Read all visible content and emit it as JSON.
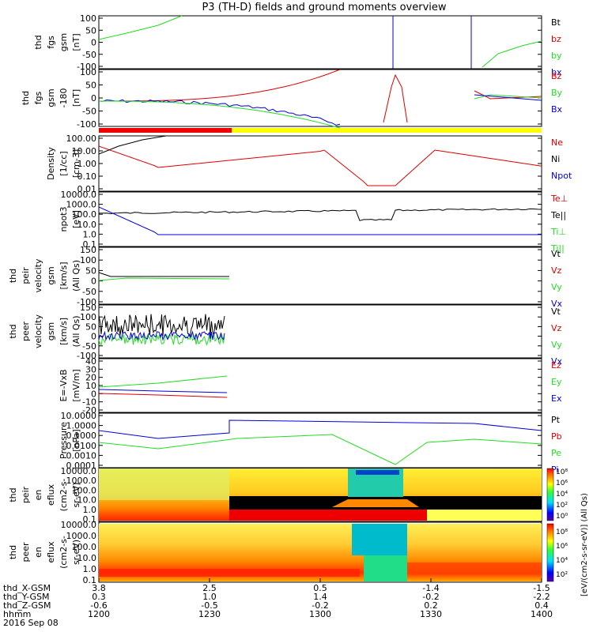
{
  "title": "P3 (TH-D) fields and ground moments overview",
  "colors": {
    "black": "#000000",
    "red": "#dd0000",
    "green": "#22dd22",
    "blue": "#0000dd",
    "bar_red": "#ee0000",
    "bar_yellow": "#ffff00"
  },
  "panels": [
    {
      "ylabel": [
        "thd",
        "fgs",
        "gsm",
        "[nT]"
      ],
      "ticks": [
        "100",
        "50",
        "0",
        "-50",
        "-100"
      ],
      "legend": [
        {
          "text": "Bt",
          "color": "black"
        },
        {
          "text": "bz",
          "color": "red"
        },
        {
          "text": "by",
          "color": "green"
        },
        {
          "text": "bx",
          "color": "blue"
        }
      ]
    },
    {
      "ylabel": [
        "thd",
        "fgs",
        "gsm",
        "-180",
        "[nT]"
      ],
      "ticks": [
        "100",
        "50",
        "0",
        "-50",
        "-100"
      ],
      "legend": [
        {
          "text": "Bz",
          "color": "red"
        },
        {
          "text": "By",
          "color": "green"
        },
        {
          "text": "Bx",
          "color": "blue"
        }
      ]
    },
    {
      "ylabel": [
        "Density",
        "[1/cc]",
        "[cm-3]"
      ],
      "ticks": [
        "100.00",
        "10.00",
        "1.00",
        "0.10",
        "0.01"
      ],
      "legend": [
        {
          "text": "Ne",
          "color": "red"
        },
        {
          "text": "Ni",
          "color": "black"
        },
        {
          "text": "Npot",
          "color": "blue"
        }
      ]
    },
    {
      "ylabel": [
        "npot3",
        "[eV]"
      ],
      "ticks": [
        "10000.0",
        "1000.0",
        "100.0",
        "10.0",
        "1.0",
        "0.1"
      ],
      "legend": [
        {
          "text": "Te⊥",
          "color": "red"
        },
        {
          "text": "Te||",
          "color": "black"
        },
        {
          "text": "Ti⊥",
          "color": "green"
        },
        {
          "text": "Ti||",
          "color": "green"
        }
      ]
    },
    {
      "ylabel": [
        "thd",
        "peir",
        "velocity",
        "gsm",
        "[km/s]",
        "(All Qs)"
      ],
      "ticks": [
        "150",
        "100",
        "50",
        "0",
        "-50",
        "-100"
      ],
      "legend": [
        {
          "text": "Vt",
          "color": "black"
        },
        {
          "text": "Vz",
          "color": "red"
        },
        {
          "text": "Vy",
          "color": "green"
        },
        {
          "text": "Vx",
          "color": "blue"
        }
      ]
    },
    {
      "ylabel": [
        "thd",
        "peer",
        "velocity",
        "gsm",
        "[km/s]",
        "(All Qs)"
      ],
      "ticks": [
        "150",
        "100",
        "50",
        "0",
        "-50",
        "-100"
      ],
      "legend": [
        {
          "text": "Vt",
          "color": "black"
        },
        {
          "text": "Vz",
          "color": "red"
        },
        {
          "text": "Vy",
          "color": "green"
        },
        {
          "text": "Vx",
          "color": "blue"
        }
      ]
    },
    {
      "ylabel": [
        "E=-VxB",
        "[mV/m]"
      ],
      "ticks": [
        "40",
        "30",
        "20",
        "10",
        "0",
        "-10",
        "-20"
      ],
      "legend": [
        {
          "text": "Ez",
          "color": "red"
        },
        {
          "text": "Ey",
          "color": "green"
        },
        {
          "text": "Ex",
          "color": "blue"
        }
      ]
    },
    {
      "ylabel": [
        "Pressure",
        "[nPa]"
      ],
      "ticks": [
        "10.0000",
        "1.0000",
        "0.1000",
        "0.0100",
        "0.0010",
        "0.0001"
      ],
      "legend": [
        {
          "text": "Pt",
          "color": "black"
        },
        {
          "text": "Pb",
          "color": "red"
        },
        {
          "text": "Pe",
          "color": "green"
        },
        {
          "text": "Pi",
          "color": "blue"
        }
      ]
    },
    {
      "ylabel": [
        "thd",
        "peir",
        "en",
        "eflux",
        "(cm2-s-",
        "sr-eV)"
      ],
      "ticks": [
        "10000.0",
        "1000.0",
        "100.0",
        "10.0",
        "1.0",
        "0.1"
      ],
      "legend": []
    },
    {
      "ylabel": [
        "thd",
        "peer",
        "en",
        "eflux",
        "(cm2-s-",
        "sr-eV)"
      ],
      "ticks": [
        "10000.0",
        "1000.0",
        "100.0",
        "10.0",
        "1.0",
        "0.1"
      ],
      "legend": []
    }
  ],
  "colorbar": {
    "label": "[eV/(cm2-s-sr-eV)] (All Qs)",
    "ticks_upper": [
      "10⁸",
      "10⁶",
      "10⁴",
      "10²",
      "10⁰"
    ],
    "ticks_lower": [
      "10⁸",
      "10⁶",
      "10⁴",
      "10²"
    ]
  },
  "xaxis": {
    "rows": [
      {
        "label": "thd_X-GSM",
        "values": [
          "3.8",
          "2.5",
          "0.5",
          "-1.4",
          "-1.5"
        ]
      },
      {
        "label": "thd_Y-GSM",
        "values": [
          "0.3",
          "1.0",
          "1.4",
          "-0.2",
          "-2.2"
        ]
      },
      {
        "label": "thd_Z-GSM",
        "values": [
          "-0.6",
          "-0.5",
          "-0.2",
          "0.2",
          "0.4"
        ]
      },
      {
        "label": "hhmm",
        "values": [
          "1200",
          "1230",
          "1300",
          "1330",
          "1400"
        ]
      }
    ],
    "date": "2016 Sep 08"
  }
}
